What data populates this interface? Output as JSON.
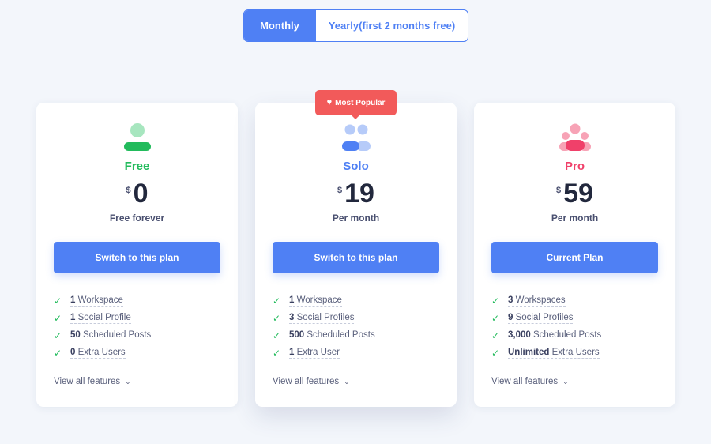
{
  "billing_toggle": {
    "monthly_label": "Monthly",
    "yearly_label": "Yearly(first 2 months free)",
    "selected": "monthly"
  },
  "colors": {
    "accent": "#4f80f4",
    "free": "#22bb5c",
    "solo": "#4f80f4",
    "pro": "#f0406a",
    "badge": "#f25a5a",
    "check": "#22bb5c"
  },
  "plans": [
    {
      "name": "Free",
      "currency": "$",
      "price": "0",
      "period": "Free forever",
      "button_label": "Switch to this plan",
      "icon": "single-user-icon",
      "features": [
        {
          "num": "1",
          "text": "Workspace"
        },
        {
          "num": "1",
          "text": "Social Profile"
        },
        {
          "num": "50",
          "text": "Scheduled Posts"
        },
        {
          "num": "0",
          "text": "Extra Users"
        }
      ],
      "view_all_label": "View all features"
    },
    {
      "name": "Solo",
      "currency": "$",
      "price": "19",
      "period": "Per month",
      "button_label": "Switch to this plan",
      "icon": "two-users-icon",
      "badge": {
        "label": "Most Popular",
        "icon": "heart-icon"
      },
      "features": [
        {
          "num": "1",
          "text": "Workspace"
        },
        {
          "num": "3",
          "text": "Social Profiles"
        },
        {
          "num": "500",
          "text": "Scheduled Posts"
        },
        {
          "num": "1",
          "text": "Extra User"
        }
      ],
      "view_all_label": "View all features"
    },
    {
      "name": "Pro",
      "currency": "$",
      "price": "59",
      "period": "Per month",
      "button_label": "Current Plan",
      "icon": "team-users-icon",
      "features": [
        {
          "num": "3",
          "text": "Workspaces"
        },
        {
          "num": "9",
          "text": "Social Profiles"
        },
        {
          "num": "3,000",
          "text": "Scheduled Posts"
        },
        {
          "num": "Unlimited",
          "text": "Extra Users"
        }
      ],
      "view_all_label": "View all features"
    }
  ]
}
